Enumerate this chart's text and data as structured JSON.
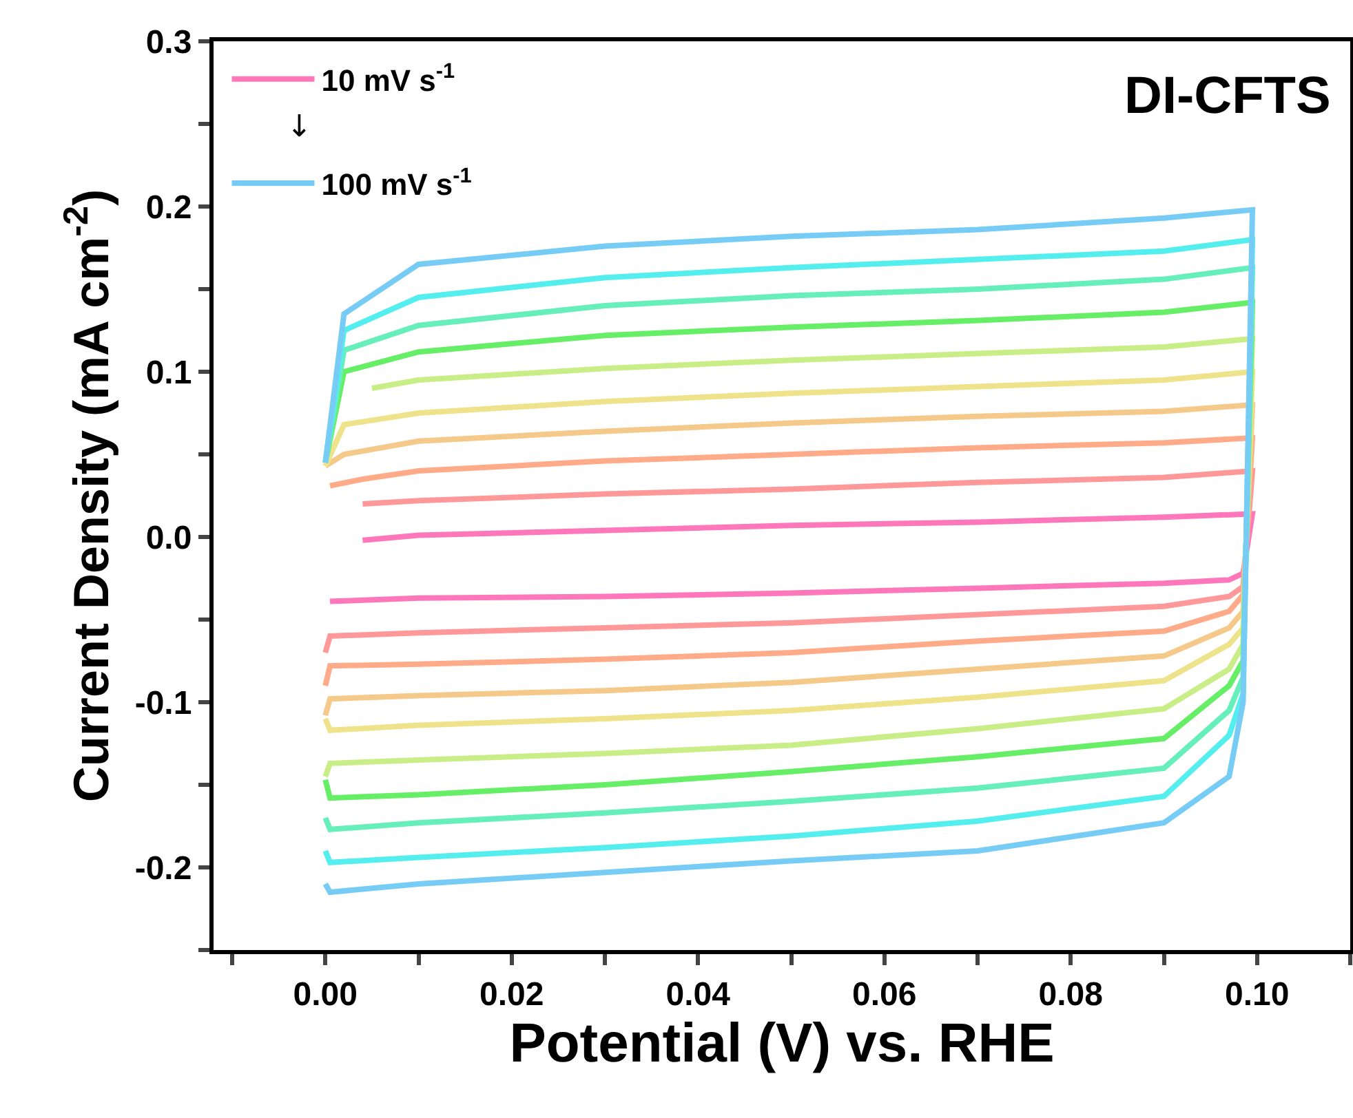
{
  "chart_data": {
    "type": "line",
    "xlabel": "Potential (V) vs. RHE",
    "ylabel": "Current Density (mA cm$^{-2}$)",
    "annotations": [
      "DI-CFTS",
      "↓"
    ],
    "xlim": [
      -0.012,
      0.11
    ],
    "ylim": [
      -0.25,
      0.3
    ],
    "xticks": [
      {
        "value": -0.01,
        "label": null
      },
      {
        "value": 0,
        "label": "0.00"
      },
      {
        "value": 0.01,
        "label": null
      },
      {
        "value": 0.02,
        "label": "0.02"
      },
      {
        "value": 0.03,
        "label": null
      },
      {
        "value": 0.04,
        "label": "0.04"
      },
      {
        "value": 0.05,
        "label": null
      },
      {
        "value": 0.06,
        "label": "0.06"
      },
      {
        "value": 0.07,
        "label": null
      },
      {
        "value": 0.08,
        "label": "0.08"
      },
      {
        "value": 0.09,
        "label": null
      },
      {
        "value": 0.1,
        "label": "0.10"
      },
      {
        "value": 0.11,
        "label": null
      }
    ],
    "yticks": [
      {
        "value": -0.25,
        "label": null
      },
      {
        "value": -0.2,
        "label": "-0.2"
      },
      {
        "value": -0.15,
        "label": null
      },
      {
        "value": -0.1,
        "label": "-0.1"
      },
      {
        "value": -0.05,
        "label": null
      },
      {
        "value": 0,
        "label": "0.0"
      },
      {
        "value": 0.05,
        "label": null
      },
      {
        "value": 0.1,
        "label": "0.1"
      },
      {
        "value": 0.15,
        "label": null
      },
      {
        "value": 0.2,
        "label": "0.2"
      },
      {
        "value": 0.25,
        "label": null
      },
      {
        "value": 0.3,
        "label": "0.3"
      }
    ],
    "grid": false,
    "legend": "top left",
    "marker": "none",
    "line_style": "solid",
    "series": [
      {
        "name": "10 mV s$^{-1}$",
        "color": "#ff77bb",
        "x": [
          0.004,
          0.01,
          0.03,
          0.05,
          0.07,
          0.09,
          0.0995,
          0.0985,
          0.097,
          0.09,
          0.07,
          0.05,
          0.03,
          0.01,
          0.0005
        ],
        "values": [
          -0.002,
          0.001,
          0.004,
          0.007,
          0.009,
          0.012,
          0.014,
          -0.022,
          -0.026,
          -0.028,
          -0.031,
          -0.034,
          -0.036,
          -0.037,
          -0.039
        ]
      },
      {
        "color": "#ff9999",
        "x": [
          0.004,
          0.01,
          0.03,
          0.05,
          0.07,
          0.09,
          0.0995,
          0.0985,
          0.097,
          0.09,
          0.07,
          0.05,
          0.03,
          0.01,
          0.0005,
          0
        ],
        "values": [
          0.02,
          0.022,
          0.026,
          0.029,
          0.033,
          0.036,
          0.04,
          -0.03,
          -0.036,
          -0.042,
          -0.047,
          -0.052,
          -0.055,
          -0.058,
          -0.06,
          -0.07
        ]
      },
      {
        "color": "#ffaa88",
        "x": [
          0.0005,
          0.004,
          0.01,
          0.03,
          0.05,
          0.07,
          0.09,
          0.0995,
          0.0985,
          0.097,
          0.09,
          0.07,
          0.05,
          0.03,
          0.01,
          0.0005,
          0
        ],
        "values": [
          0.031,
          0.035,
          0.04,
          0.046,
          0.05,
          0.054,
          0.057,
          0.06,
          -0.035,
          -0.045,
          -0.057,
          -0.063,
          -0.07,
          -0.074,
          -0.077,
          -0.078,
          -0.09
        ]
      },
      {
        "color": "#f5c98a",
        "x": [
          0,
          0.002,
          0.01,
          0.03,
          0.05,
          0.07,
          0.09,
          0.0995,
          0.0985,
          0.097,
          0.09,
          0.07,
          0.05,
          0.03,
          0.01,
          0.0005,
          0
        ],
        "values": [
          0.043,
          0.05,
          0.058,
          0.064,
          0.069,
          0.073,
          0.076,
          0.08,
          -0.045,
          -0.055,
          -0.072,
          -0.08,
          -0.088,
          -0.093,
          -0.096,
          -0.098,
          -0.108
        ]
      },
      {
        "color": "#eee38a",
        "x": [
          0,
          0.002,
          0.01,
          0.03,
          0.05,
          0.07,
          0.09,
          0.0995,
          0.0985,
          0.097,
          0.09,
          0.07,
          0.05,
          0.03,
          0.01,
          0.0005,
          0
        ],
        "values": [
          0.043,
          0.068,
          0.075,
          0.082,
          0.087,
          0.091,
          0.095,
          0.1,
          -0.055,
          -0.065,
          -0.087,
          -0.097,
          -0.105,
          -0.11,
          -0.114,
          -0.117,
          -0.11
        ]
      },
      {
        "color": "#c9ee88",
        "x": [
          0.005,
          0.01,
          0.03,
          0.05,
          0.07,
          0.09,
          0.0995,
          0.0985,
          0.097,
          0.09,
          0.07,
          0.05,
          0.03,
          0.01,
          0.0005,
          0
        ],
        "values": [
          0.09,
          0.095,
          0.102,
          0.107,
          0.111,
          0.115,
          0.12,
          -0.065,
          -0.08,
          -0.104,
          -0.116,
          -0.126,
          -0.131,
          -0.135,
          -0.137,
          -0.145
        ]
      },
      {
        "color": "#66ee66",
        "x": [
          0,
          0.002,
          0.01,
          0.03,
          0.05,
          0.07,
          0.09,
          0.0995,
          0.0985,
          0.097,
          0.09,
          0.07,
          0.05,
          0.03,
          0.01,
          0.0005,
          0
        ],
        "values": [
          0.045,
          0.1,
          0.112,
          0.122,
          0.127,
          0.131,
          0.136,
          0.142,
          -0.075,
          -0.09,
          -0.122,
          -0.133,
          -0.142,
          -0.15,
          -0.156,
          -0.158,
          -0.147
        ]
      },
      {
        "color": "#66eebb",
        "x": [
          0,
          0.002,
          0.01,
          0.03,
          0.05,
          0.07,
          0.09,
          0.0995,
          0.0985,
          0.097,
          0.09,
          0.07,
          0.05,
          0.03,
          0.01,
          0.0005,
          0
        ],
        "values": [
          0.045,
          0.113,
          0.128,
          0.14,
          0.146,
          0.15,
          0.156,
          0.163,
          -0.085,
          -0.105,
          -0.14,
          -0.152,
          -0.16,
          -0.167,
          -0.173,
          -0.177,
          -0.17
        ]
      },
      {
        "color": "#55eeee",
        "x": [
          0,
          0.002,
          0.01,
          0.03,
          0.05,
          0.07,
          0.09,
          0.0995,
          0.0985,
          0.097,
          0.09,
          0.07,
          0.05,
          0.03,
          0.01,
          0.0005,
          0
        ],
        "values": [
          0.045,
          0.125,
          0.145,
          0.157,
          0.163,
          0.168,
          0.173,
          0.18,
          -0.095,
          -0.12,
          -0.157,
          -0.172,
          -0.181,
          -0.188,
          -0.194,
          -0.197,
          -0.19
        ]
      },
      {
        "name": "100 mV s$^{-1}$",
        "color": "#77ccf5",
        "x": [
          0,
          0.002,
          0.01,
          0.03,
          0.05,
          0.07,
          0.09,
          0.0995,
          0.0985,
          0.097,
          0.09,
          0.07,
          0.05,
          0.03,
          0.01,
          0.0005,
          0
        ],
        "values": [
          0.045,
          0.135,
          0.165,
          0.176,
          0.182,
          0.186,
          0.193,
          0.198,
          -0.1,
          -0.145,
          -0.173,
          -0.19,
          -0.196,
          -0.203,
          -0.21,
          -0.215,
          -0.21
        ]
      }
    ]
  }
}
